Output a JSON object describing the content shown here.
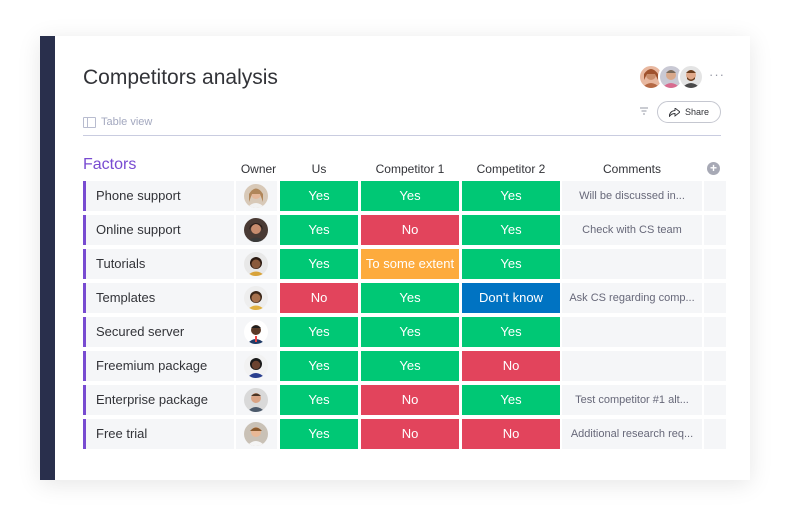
{
  "board": {
    "title": "Competitors analysis",
    "view_label": "Table view",
    "share_label": "Share",
    "more_label": "···",
    "group_title": "Factors",
    "group_color": "#784bd1"
  },
  "colors": {
    "green": "#00c875",
    "red": "#e2445c",
    "orange": "#fdab3d",
    "blue": "#0073c2",
    "sidebar": "#292f4c"
  },
  "columns": {
    "owner": "Owner",
    "us": "Us",
    "competitor1": "Competitor 1",
    "competitor2": "Competitor 2",
    "comments": "Comments"
  },
  "rows": [
    {
      "name": "Phone support",
      "us": {
        "label": "Yes",
        "color": "green"
      },
      "c1": {
        "label": "Yes",
        "color": "green"
      },
      "c2": {
        "label": "Yes",
        "color": "green"
      },
      "comment": "Will be discussed in..."
    },
    {
      "name": "Online support",
      "us": {
        "label": "Yes",
        "color": "green"
      },
      "c1": {
        "label": "No",
        "color": "red"
      },
      "c2": {
        "label": "Yes",
        "color": "green"
      },
      "comment": "Check with CS team"
    },
    {
      "name": "Tutorials",
      "us": {
        "label": "Yes",
        "color": "green"
      },
      "c1": {
        "label": "To some extent",
        "color": "orange"
      },
      "c2": {
        "label": "Yes",
        "color": "green"
      },
      "comment": ""
    },
    {
      "name": "Templates",
      "us": {
        "label": "No",
        "color": "red"
      },
      "c1": {
        "label": "Yes",
        "color": "green"
      },
      "c2": {
        "label": "Don't know",
        "color": "blue"
      },
      "comment": "Ask CS regarding comp..."
    },
    {
      "name": "Secured server",
      "us": {
        "label": "Yes",
        "color": "green"
      },
      "c1": {
        "label": "Yes",
        "color": "green"
      },
      "c2": {
        "label": "Yes",
        "color": "green"
      },
      "comment": ""
    },
    {
      "name": "Freemium package",
      "us": {
        "label": "Yes",
        "color": "green"
      },
      "c1": {
        "label": "Yes",
        "color": "green"
      },
      "c2": {
        "label": "No",
        "color": "red"
      },
      "comment": ""
    },
    {
      "name": "Enterprise package",
      "us": {
        "label": "Yes",
        "color": "green"
      },
      "c1": {
        "label": "No",
        "color": "red"
      },
      "c2": {
        "label": "Yes",
        "color": "green"
      },
      "comment": "Test competitor #1 alt..."
    },
    {
      "name": "Free trial",
      "us": {
        "label": "Yes",
        "color": "green"
      },
      "c1": {
        "label": "No",
        "color": "red"
      },
      "c2": {
        "label": "No",
        "color": "red"
      },
      "comment": "Additional research req..."
    }
  ]
}
